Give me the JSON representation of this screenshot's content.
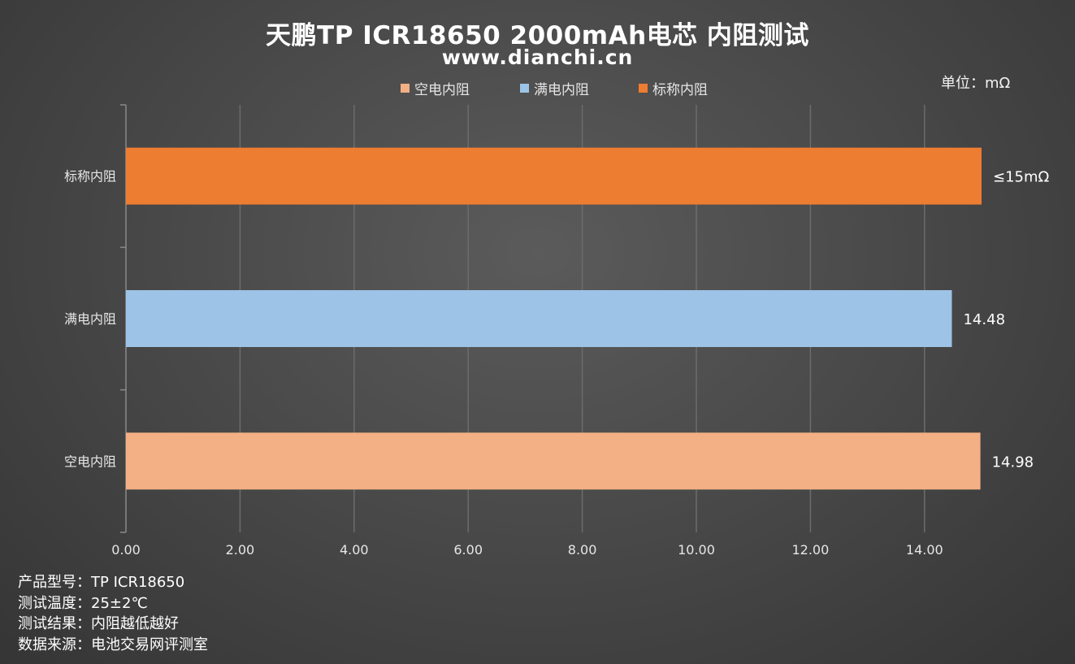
{
  "title": "天鹏TP ICR18650 2000mAh电芯 内阻测试",
  "subtitle": "www.dianchi.cn",
  "unit_label": "单位：mΩ",
  "colors": {
    "empty": "#f2b084",
    "full": "#9dc3e6",
    "nominal": "#ed7d31",
    "grid": "#6c6c6c",
    "axis": "#8a8a8a"
  },
  "notes": [
    "产品型号：TP ICR18650",
    "测试温度：25±2℃",
    "测试结果：内阻越低越好",
    "数据来源：电池交易网评测室"
  ],
  "chart_data": {
    "type": "bar",
    "orientation": "horizontal",
    "categories": [
      "标称内阻",
      "满电内阻",
      "空电内阻"
    ],
    "series": [
      {
        "name": "空电内阻",
        "category": "空电内阻",
        "value": 14.98,
        "label": "14.98",
        "color": "#f2b084"
      },
      {
        "name": "满电内阻",
        "category": "满电内阻",
        "value": 14.48,
        "label": "14.48",
        "color": "#9dc3e6"
      },
      {
        "name": "标称内阻",
        "category": "标称内阻",
        "value": 15,
        "label": "≤15mΩ",
        "color": "#ed7d31"
      }
    ],
    "legend": [
      "空电内阻",
      "满电内阻",
      "标称内阻"
    ],
    "legend_position": "top",
    "xlim": [
      0,
      15
    ],
    "xticks": [
      0,
      2,
      4,
      6,
      8,
      10,
      12,
      14
    ],
    "xtick_labels": [
      "0.00",
      "2.00",
      "4.00",
      "6.00",
      "8.00",
      "10.00",
      "12.00",
      "14.00"
    ],
    "grid": true
  }
}
